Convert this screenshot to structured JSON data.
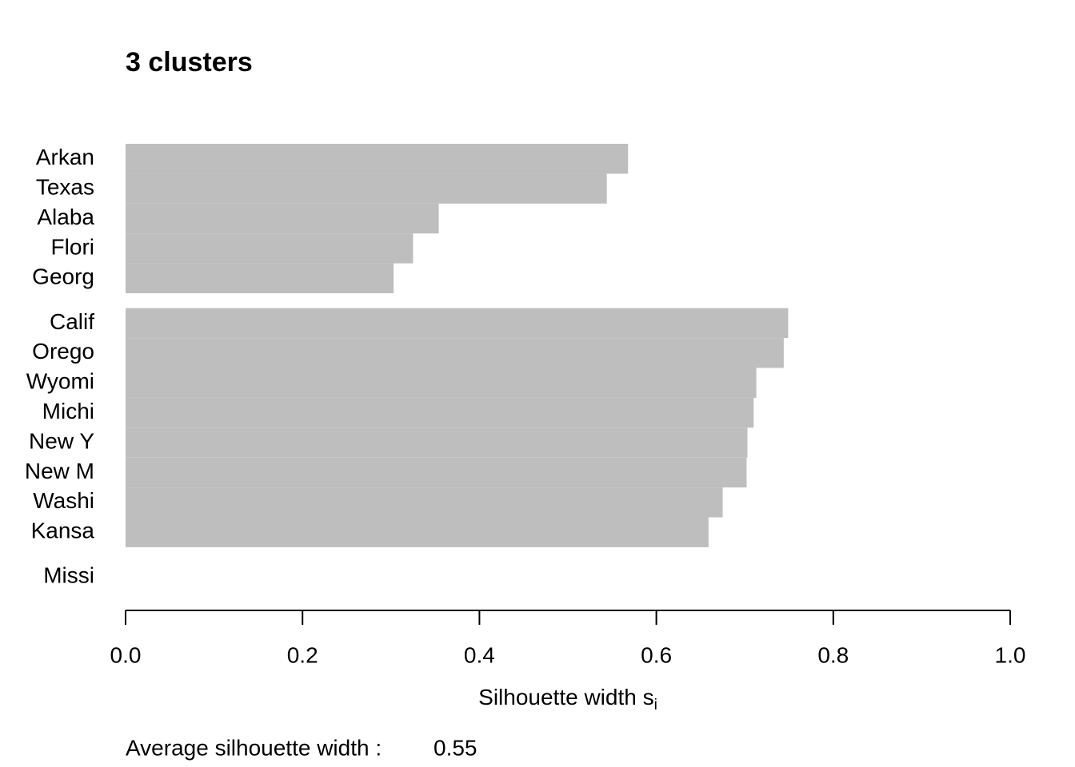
{
  "chart_data": {
    "type": "silhouette",
    "title": "3 clusters",
    "clusters": [
      {
        "categories": [
          "Arkan",
          "Texas",
          "Alaba",
          "Flori",
          "Georg"
        ],
        "values": [
          0.568,
          0.544,
          0.354,
          0.325,
          0.303
        ]
      },
      {
        "categories": [
          "Calif",
          "Orego",
          "Wyomi",
          "Michi",
          "New Y",
          "New M",
          "Washi",
          "Kansa"
        ],
        "values": [
          0.749,
          0.744,
          0.713,
          0.71,
          0.703,
          0.702,
          0.675,
          0.659
        ]
      },
      {
        "categories": [
          "Missi"
        ],
        "values": [
          0
        ]
      }
    ],
    "color": "#bebebe",
    "xlim": [
      0,
      1
    ],
    "xticks": [
      {
        "value": 0,
        "label": "0.0"
      },
      0.2,
      0.4,
      0.6,
      0.8,
      {
        "value": 1,
        "label": "1.0"
      }
    ],
    "xlabel": {
      "text": "Silhouette width s",
      "subscript": "i"
    },
    "average_label": "Average silhouette width :",
    "average": 0.55
  }
}
